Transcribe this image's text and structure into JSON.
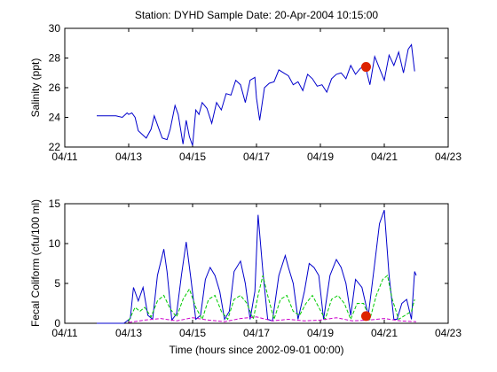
{
  "title": "Station: DYHD  Sample Date: 20-Apr-2004 10:15:00",
  "colors": {
    "salinity": "#0000cc",
    "coliform": "#0000cc",
    "green": "#00cc00",
    "magenta": "#cc00cc",
    "marker": "#dd2200",
    "axis": "#000000"
  },
  "chart_data": [
    {
      "type": "line",
      "title": "Station: DYHD  Sample Date: 20-Apr-2004 10:15:00",
      "xlabel": "",
      "ylabel": "Salinity (ppt)",
      "x_unit": "days (April 2004)",
      "xlim": [
        11,
        23
      ],
      "ylim": [
        22,
        30
      ],
      "x_ticks": [
        11,
        13,
        15,
        17,
        19,
        21,
        23
      ],
      "x_tick_labels": [
        "04/11",
        "04/13",
        "04/15",
        "04/17",
        "04/19",
        "04/21",
        "04/23"
      ],
      "y_ticks": [
        22,
        24,
        26,
        28,
        30
      ],
      "y_tick_labels": [
        "22",
        "24",
        "26",
        "28",
        "30"
      ],
      "grid": false,
      "series": [
        {
          "style": "solid",
          "color": "#0000cc",
          "x": [
            12.0,
            12.3,
            12.6,
            12.8,
            12.95,
            13.0,
            13.1,
            13.2,
            13.3,
            13.45,
            13.55,
            13.7,
            13.8,
            13.95,
            14.05,
            14.2,
            14.3,
            14.45,
            14.55,
            14.7,
            14.8,
            14.9,
            15.0,
            15.1,
            15.2,
            15.3,
            15.45,
            15.6,
            15.75,
            15.9,
            16.05,
            16.2,
            16.35,
            16.5,
            16.65,
            16.8,
            16.95,
            17.0,
            17.1,
            17.25,
            17.4,
            17.55,
            17.7,
            17.85,
            18.0,
            18.15,
            18.3,
            18.45,
            18.6,
            18.75,
            18.9,
            19.05,
            19.2,
            19.35,
            19.5,
            19.65,
            19.8,
            19.95,
            20.1,
            20.25,
            20.4,
            20.55,
            20.7,
            20.85,
            21.0,
            21.15,
            21.3,
            21.45,
            21.6,
            21.75,
            21.85,
            21.95
          ],
          "y": [
            24.1,
            24.1,
            24.1,
            24.0,
            24.3,
            24.2,
            24.3,
            24.0,
            23.1,
            22.8,
            22.6,
            23.2,
            24.1,
            23.2,
            22.6,
            22.5,
            23.2,
            24.8,
            24.2,
            22.2,
            23.8,
            22.7,
            22.1,
            24.5,
            24.2,
            25.0,
            24.6,
            23.6,
            25.0,
            24.5,
            25.6,
            25.5,
            26.5,
            26.2,
            25.0,
            26.5,
            26.7,
            25.3,
            23.8,
            26.0,
            26.3,
            26.4,
            27.2,
            27.0,
            26.8,
            26.2,
            26.4,
            25.8,
            26.9,
            26.6,
            26.1,
            26.2,
            25.7,
            26.6,
            26.9,
            27.0,
            26.6,
            27.5,
            26.9,
            27.3,
            27.5,
            26.2,
            28.1,
            27.3,
            26.5,
            28.2,
            27.5,
            28.4,
            27.0,
            28.6,
            28.9,
            27.1
          ]
        }
      ],
      "sample_point": {
        "x": 20.43,
        "y": 27.4,
        "color": "#dd2200"
      }
    },
    {
      "type": "line",
      "title": "",
      "xlabel": "Time (hours since 2002-09-01 00:00)",
      "ylabel": "Fecal Coliform (cfu/100 ml)",
      "x_unit": "days (April 2004)",
      "xlim": [
        11,
        23
      ],
      "ylim": [
        0,
        15
      ],
      "x_ticks": [
        11,
        13,
        15,
        17,
        19,
        21,
        23
      ],
      "x_tick_labels": [
        "04/11",
        "04/13",
        "04/15",
        "04/17",
        "04/19",
        "04/21",
        "04/23"
      ],
      "y_ticks": [
        0,
        5,
        10,
        15
      ],
      "y_tick_labels": [
        "0",
        "5",
        "10",
        "15"
      ],
      "grid": false,
      "series": [
        {
          "style": "solid",
          "color": "#0000cc",
          "x": [
            12.0,
            12.5,
            12.85,
            13.05,
            13.15,
            13.3,
            13.45,
            13.6,
            13.75,
            13.9,
            14.1,
            14.2,
            14.35,
            14.5,
            14.65,
            14.8,
            14.95,
            15.1,
            15.25,
            15.4,
            15.55,
            15.7,
            15.85,
            16.0,
            16.15,
            16.3,
            16.5,
            16.65,
            16.8,
            16.95,
            17.05,
            17.2,
            17.35,
            17.5,
            17.7,
            17.9,
            18.0,
            18.15,
            18.3,
            18.5,
            18.65,
            18.8,
            18.95,
            19.1,
            19.3,
            19.5,
            19.65,
            19.8,
            19.95,
            20.1,
            20.3,
            20.5,
            20.7,
            20.85,
            21.0,
            21.15,
            21.3,
            21.4,
            21.55,
            21.7,
            21.85,
            21.95,
            22.0
          ],
          "y": [
            0.0,
            0.0,
            0.0,
            0.6,
            4.5,
            2.8,
            4.5,
            1.0,
            0.5,
            6.0,
            9.3,
            6.5,
            0.4,
            1.2,
            6.0,
            10.2,
            5.5,
            0.5,
            1.0,
            5.5,
            7.0,
            6.0,
            4.0,
            0.5,
            1.5,
            6.5,
            7.8,
            5.0,
            0.5,
            4.0,
            13.6,
            6.5,
            0.5,
            0.3,
            6.0,
            8.5,
            7.0,
            5.0,
            0.5,
            4.0,
            7.5,
            7.0,
            6.0,
            0.5,
            6.0,
            8.0,
            7.0,
            5.0,
            1.0,
            5.5,
            4.5,
            1.0,
            7.5,
            12.5,
            14.2,
            6.0,
            0.5,
            0.5,
            2.5,
            3.0,
            0.5,
            6.5,
            6.0
          ]
        },
        {
          "style": "dashed",
          "color": "#00cc00",
          "x": [
            13.0,
            13.2,
            13.35,
            13.5,
            13.7,
            13.9,
            14.1,
            14.3,
            14.5,
            14.7,
            14.9,
            15.1,
            15.3,
            15.5,
            15.7,
            15.9,
            16.1,
            16.3,
            16.5,
            16.7,
            16.9,
            17.05,
            17.2,
            17.35,
            17.55,
            17.75,
            17.95,
            18.15,
            18.35,
            18.55,
            18.75,
            18.95,
            19.15,
            19.35,
            19.55,
            19.75,
            19.95,
            20.15,
            20.35,
            20.55,
            20.75,
            20.95,
            21.1,
            21.25,
            21.45,
            21.65,
            21.85,
            21.95
          ],
          "y": [
            0.3,
            2.0,
            1.5,
            2.0,
            0.8,
            2.8,
            3.5,
            1.8,
            0.8,
            3.0,
            4.3,
            2.0,
            0.5,
            3.0,
            3.5,
            1.5,
            0.5,
            3.0,
            3.5,
            2.5,
            0.5,
            3.5,
            6.0,
            3.5,
            0.5,
            3.0,
            3.5,
            1.5,
            1.0,
            2.5,
            3.5,
            2.0,
            0.5,
            3.0,
            3.5,
            2.5,
            0.5,
            2.5,
            2.5,
            0.5,
            3.5,
            5.5,
            6.0,
            3.0,
            0.5,
            1.0,
            1.5,
            3.0
          ]
        },
        {
          "style": "dashed",
          "color": "#cc00cc",
          "x": [
            13.0,
            13.5,
            14.0,
            14.5,
            15.0,
            15.5,
            16.0,
            16.5,
            17.0,
            17.5,
            18.0,
            18.5,
            19.0,
            19.5,
            20.0,
            20.5,
            21.0,
            21.5,
            22.0
          ],
          "y": [
            0.1,
            0.4,
            0.6,
            0.3,
            0.7,
            0.4,
            0.2,
            0.6,
            0.8,
            0.3,
            0.5,
            0.3,
            0.4,
            0.7,
            0.3,
            0.4,
            0.6,
            0.3,
            0.2
          ]
        }
      ],
      "sample_point": {
        "x": 20.43,
        "y": 0.9,
        "color": "#dd2200"
      }
    }
  ]
}
